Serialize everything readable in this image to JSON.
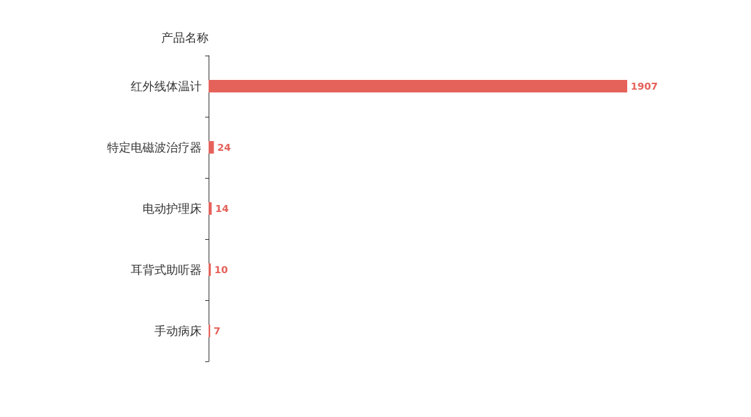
{
  "chart_data": {
    "type": "bar",
    "orientation": "horizontal",
    "ylabel": "产品名称",
    "categories": [
      "红外线体温计",
      "特定电磁波治疗器",
      "电动护理床",
      "耳背式助听器",
      "手动病床"
    ],
    "values": [
      1907,
      24,
      14,
      10,
      7
    ],
    "color": "#e5625b",
    "data_labels": true,
    "grid": false
  }
}
